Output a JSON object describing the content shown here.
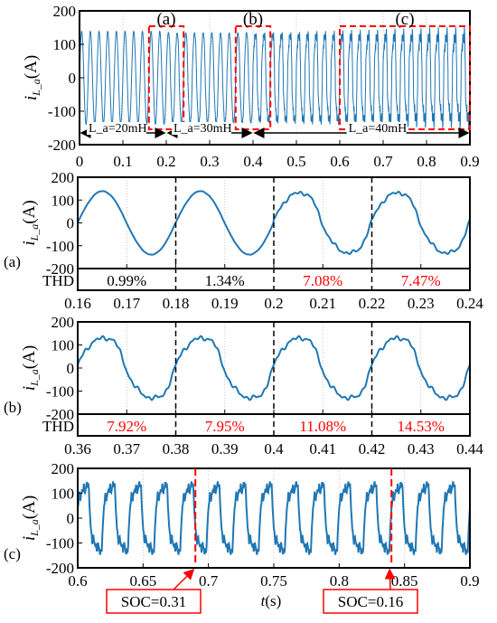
{
  "colors": {
    "wave": "#1f77b4",
    "highlight": "#ff0000",
    "axis": "#000000"
  },
  "ylabel_main": "i",
  "ylabel_sub": "L_a",
  "ylabel_unit": "(A)",
  "xlabel": "t(s)",
  "thd_label": "THD",
  "chart_data": [
    {
      "type": "line",
      "name": "overview",
      "x_ticks": [
        "0",
        "0.1",
        "0.2",
        "0.3",
        "0.4",
        "0.5",
        "0.6",
        "0.7",
        "0.8",
        "0.9"
      ],
      "y_ticks": [
        "200",
        "100",
        "0",
        "-100",
        "-200"
      ],
      "xlim": [
        0,
        0.9
      ],
      "ylim": [
        -200,
        200
      ],
      "frequency_hz": 50,
      "amplitude": 140,
      "inductances": [
        {
          "label": "L_a=20mH",
          "from": 0,
          "to": 0.2
        },
        {
          "label": "L_a=30mH",
          "from": 0.2,
          "to": 0.4
        },
        {
          "label": "L_a=40mH",
          "from": 0.4,
          "to": 0.9
        }
      ],
      "zoom_boxes": [
        {
          "label": "(a)",
          "from": 0.16,
          "to": 0.24
        },
        {
          "label": "(b)",
          "from": 0.36,
          "to": 0.44
        },
        {
          "label": "(c)",
          "from": 0.6,
          "to": 0.9
        }
      ],
      "grid": true
    },
    {
      "type": "line",
      "name": "(a)",
      "x_ticks": [
        "0.16",
        "0.17",
        "0.18",
        "0.19",
        "0.2",
        "0.21",
        "0.22",
        "0.23",
        "0.24"
      ],
      "y_ticks": [
        "200",
        "100",
        "0",
        "-100",
        "-200"
      ],
      "xlim": [
        0.16,
        0.24
      ],
      "ylim": [
        -200,
        200
      ],
      "amplitude": 140,
      "dividers": [
        0.18,
        0.2,
        0.22
      ],
      "thd": [
        {
          "value": "0.99%",
          "highlight": false
        },
        {
          "value": "1.34%",
          "highlight": false
        },
        {
          "value": "7.08%",
          "highlight": true
        },
        {
          "value": "7.47%",
          "highlight": true
        }
      ],
      "grid": true
    },
    {
      "type": "line",
      "name": "(b)",
      "x_ticks": [
        "0.36",
        "0.37",
        "0.38",
        "0.39",
        "0.4",
        "0.41",
        "0.42",
        "0.43",
        "0.44"
      ],
      "y_ticks": [
        "200",
        "100",
        "0",
        "-100",
        "-200"
      ],
      "xlim": [
        0.36,
        0.44
      ],
      "ylim": [
        -200,
        200
      ],
      "amplitude": 140,
      "dividers": [
        0.38,
        0.4,
        0.42
      ],
      "thd": [
        {
          "value": "7.92%",
          "highlight": true
        },
        {
          "value": "7.95%",
          "highlight": true
        },
        {
          "value": "11.08%",
          "highlight": true
        },
        {
          "value": "14.53%",
          "highlight": true
        }
      ],
      "grid": true
    },
    {
      "type": "line",
      "name": "(c)",
      "x_ticks": [
        "0.6",
        "0.65",
        "0.7",
        "0.75",
        "0.8",
        "0.85",
        "0.9"
      ],
      "y_ticks": [
        "200",
        "100",
        "0",
        "-100",
        "-200"
      ],
      "xlim": [
        0.6,
        0.9
      ],
      "ylim": [
        -200,
        200
      ],
      "amplitude": 140,
      "soc_markers": [
        {
          "t": 0.69,
          "label": "SOC=0.31"
        },
        {
          "t": 0.84,
          "label": "SOC=0.16"
        }
      ],
      "grid": true
    }
  ]
}
